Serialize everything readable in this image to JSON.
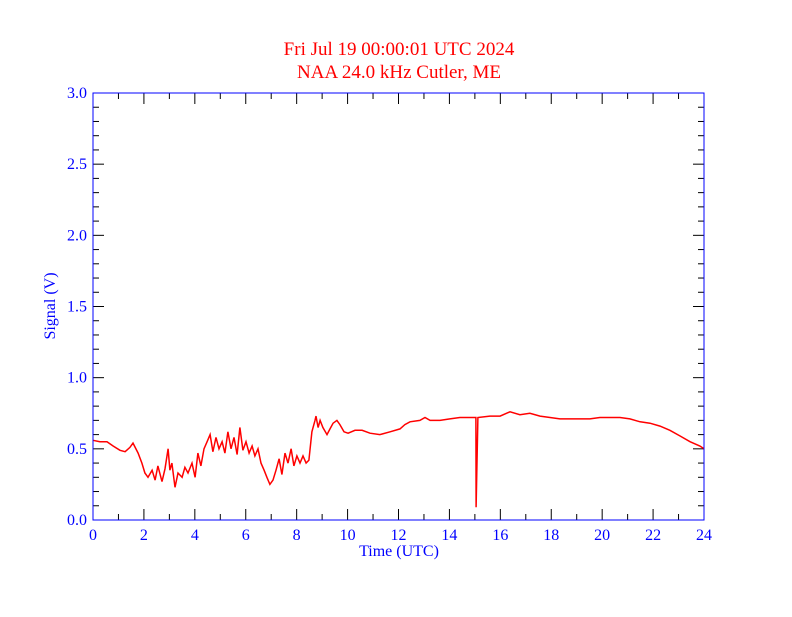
{
  "chart_data": {
    "type": "line",
    "title": "Fri Jul 19 00:00:01 UTC 2024",
    "subtitle": "NAA 24.0 kHz Cutler, ME",
    "xlabel": "Time (UTC)",
    "ylabel": "Signal (V)",
    "xlim": [
      0,
      24
    ],
    "ylim": [
      0,
      3.0
    ],
    "xticks": [
      "0",
      "2",
      "4",
      "6",
      "8",
      "10",
      "12",
      "14",
      "16",
      "18",
      "20",
      "22",
      "24"
    ],
    "yticks": [
      "0.0",
      "0.5",
      "1.0",
      "1.5",
      "2.0",
      "2.5",
      "3.0"
    ],
    "grid": false,
    "colors": {
      "title": "#ff0000",
      "axes": "#0000ff",
      "series": "#ff0000",
      "ticks": "#000000"
    },
    "series": [
      {
        "x": [
          0,
          0.27,
          0.55,
          0.79,
          1.06,
          1.26,
          1.45,
          1.57,
          1.77,
          1.92,
          2.04,
          2.16,
          2.32,
          2.44,
          2.55,
          2.71,
          2.83,
          2.95,
          3.02,
          3.1,
          3.22,
          3.34,
          3.5,
          3.61,
          3.73,
          3.89,
          4.01,
          4.12,
          4.24,
          4.36,
          4.48,
          4.6,
          4.71,
          4.83,
          4.95,
          5.07,
          5.18,
          5.3,
          5.42,
          5.54,
          5.66,
          5.77,
          5.89,
          6.01,
          6.13,
          6.25,
          6.36,
          6.48,
          6.6,
          6.72,
          6.83,
          6.95,
          7.07,
          7.19,
          7.31,
          7.42,
          7.54,
          7.66,
          7.78,
          7.89,
          8.01,
          8.13,
          8.25,
          8.37,
          8.48,
          8.6,
          8.72,
          8.76,
          8.84,
          8.92,
          9.03,
          9.19,
          9.31,
          9.43,
          9.58,
          9.7,
          9.86,
          10.02,
          10.29,
          10.57,
          10.88,
          11.27,
          11.67,
          12.06,
          12.25,
          12.45,
          12.84,
          13.04,
          13.24,
          13.63,
          14.02,
          14.41,
          14.81,
          15.04,
          15.05,
          15.12,
          15.59,
          15.99,
          16.38,
          16.77,
          17.16,
          17.56,
          17.95,
          18.34,
          18.74,
          19.13,
          19.52,
          19.91,
          20.31,
          20.7,
          21.09,
          21.49,
          21.88,
          22.27,
          22.66,
          23.06,
          23.45,
          23.84,
          24
        ],
        "y": [
          0.56,
          0.55,
          0.55,
          0.52,
          0.49,
          0.48,
          0.51,
          0.54,
          0.47,
          0.4,
          0.33,
          0.3,
          0.35,
          0.28,
          0.38,
          0.27,
          0.36,
          0.5,
          0.35,
          0.4,
          0.23,
          0.33,
          0.3,
          0.37,
          0.33,
          0.4,
          0.3,
          0.47,
          0.38,
          0.5,
          0.55,
          0.6,
          0.48,
          0.58,
          0.5,
          0.55,
          0.47,
          0.62,
          0.5,
          0.58,
          0.46,
          0.65,
          0.49,
          0.55,
          0.47,
          0.52,
          0.45,
          0.5,
          0.4,
          0.35,
          0.3,
          0.25,
          0.28,
          0.35,
          0.43,
          0.32,
          0.47,
          0.4,
          0.5,
          0.38,
          0.45,
          0.4,
          0.45,
          0.4,
          0.42,
          0.62,
          0.7,
          0.73,
          0.65,
          0.7,
          0.65,
          0.6,
          0.64,
          0.68,
          0.7,
          0.67,
          0.62,
          0.61,
          0.63,
          0.63,
          0.61,
          0.6,
          0.62,
          0.64,
          0.67,
          0.69,
          0.7,
          0.72,
          0.7,
          0.7,
          0.71,
          0.72,
          0.72,
          0.72,
          0.09,
          0.72,
          0.73,
          0.73,
          0.76,
          0.74,
          0.75,
          0.73,
          0.72,
          0.71,
          0.71,
          0.71,
          0.71,
          0.72,
          0.72,
          0.72,
          0.71,
          0.69,
          0.68,
          0.66,
          0.63,
          0.59,
          0.55,
          0.52,
          0.5
        ]
      }
    ]
  }
}
